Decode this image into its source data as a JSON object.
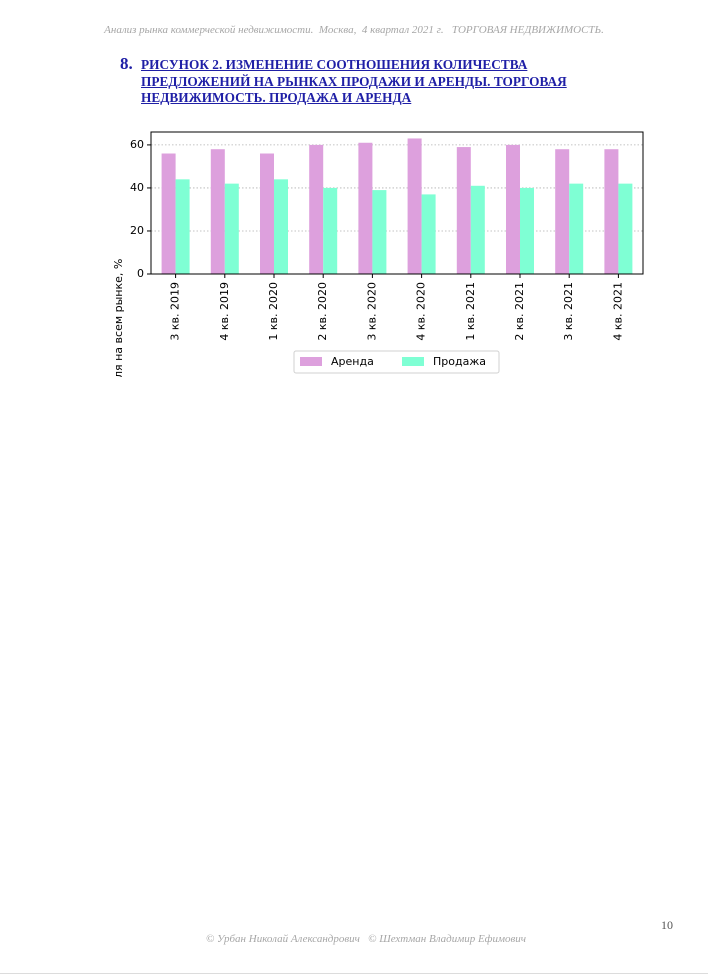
{
  "header": {
    "running_title": "Анализ рынка коммерческой недвижимости.  Москва,  4 квартал 2021 г.   ТОРГОВАЯ НЕДВИЖИМОСТЬ."
  },
  "figure": {
    "number": "8.",
    "caption": "РИСУНОК 2. ИЗМЕНЕНИЕ СООТНОШЕНИЯ КОЛИЧЕСТВА ПРЕДЛОЖЕНИЙ НА РЫНКАХ ПРОДАЖИ И АРЕНДЫ. ТОРГОВАЯ НЕДВИЖИМОСТЬ. ПРОДАЖА И АРЕНДА"
  },
  "chart_data": {
    "type": "bar",
    "title": "",
    "xlabel": "",
    "ylabel": "Доля на всем рынке, %",
    "ylim": [
      0,
      66
    ],
    "yticks": [
      0,
      20,
      40,
      60
    ],
    "grid": "horizontal dotted",
    "legend_position": "bottom-center",
    "categories": [
      "3 кв. 2019",
      "4 кв. 2019",
      "1 кв. 2020",
      "2 кв. 2020",
      "3 кв. 2020",
      "4 кв. 2020",
      "1 кв. 2021",
      "2 кв. 2021",
      "3 кв. 2021",
      "4 кв. 2021"
    ],
    "series": [
      {
        "name": "Аренда",
        "color": "#dda0dd",
        "values": [
          56,
          58,
          56,
          60,
          61,
          63,
          59,
          60,
          58,
          58
        ]
      },
      {
        "name": "Продажа",
        "color": "#7fffd4",
        "values": [
          44,
          42,
          44,
          40,
          39,
          37,
          41,
          40,
          42,
          42
        ]
      }
    ]
  },
  "page": {
    "number": "10"
  },
  "footer": {
    "copyright": "© Урбан Николай Александрович   © Шехтман Владимир Ефимович"
  }
}
